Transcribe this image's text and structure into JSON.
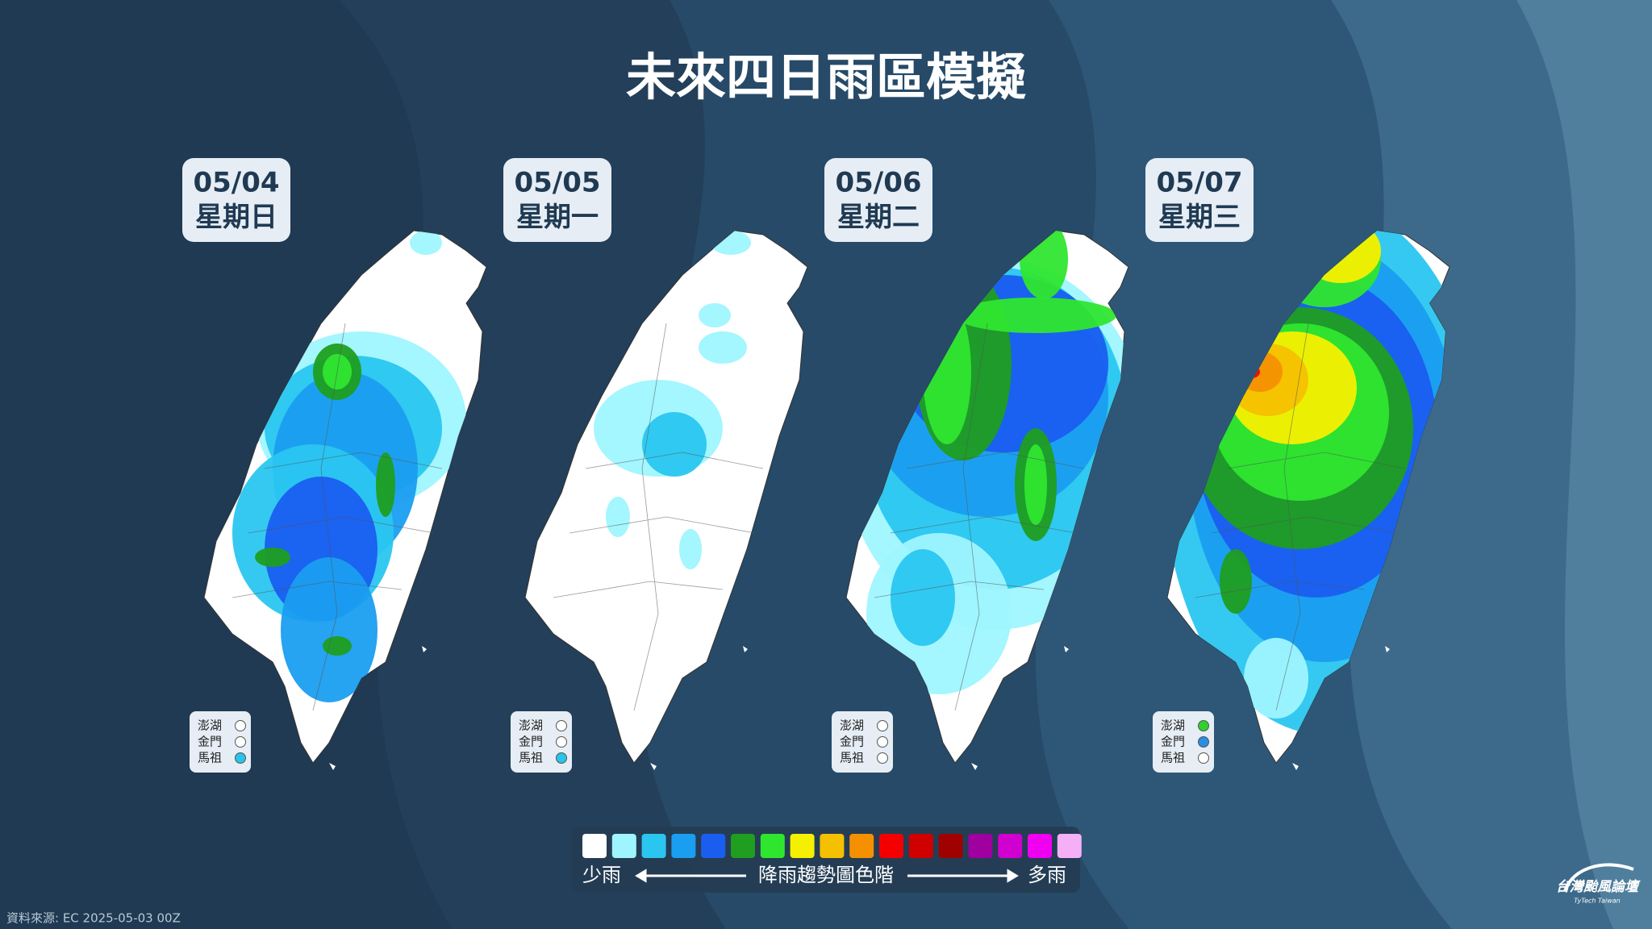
{
  "title": "未來四日雨區模擬",
  "panels": [
    {
      "date": "05/04",
      "weekday": "星期日",
      "islands": [
        {
          "name": "澎湖",
          "color": "#ffffff"
        },
        {
          "name": "金門",
          "color": "#ffffff"
        },
        {
          "name": "馬祖",
          "color": "#29c4e8"
        }
      ]
    },
    {
      "date": "05/05",
      "weekday": "星期一",
      "islands": [
        {
          "name": "澎湖",
          "color": "#ffffff"
        },
        {
          "name": "金門",
          "color": "#ffffff"
        },
        {
          "name": "馬祖",
          "color": "#29c4e8"
        }
      ]
    },
    {
      "date": "05/06",
      "weekday": "星期二",
      "islands": [
        {
          "name": "澎湖",
          "color": "#ffffff"
        },
        {
          "name": "金門",
          "color": "#ffffff"
        },
        {
          "name": "馬祖",
          "color": "#ffffff"
        }
      ]
    },
    {
      "date": "05/07",
      "weekday": "星期三",
      "islands": [
        {
          "name": "澎湖",
          "color": "#2fd12f"
        },
        {
          "name": "金門",
          "color": "#2a8fe0"
        },
        {
          "name": "馬祖",
          "color": "#ffffff"
        }
      ]
    }
  ],
  "color_scale": {
    "colors": [
      "#ffffff",
      "#9ff5ff",
      "#2ac6f0",
      "#1a9ef0",
      "#1a5ef0",
      "#1f9e1f",
      "#2fe62f",
      "#f5f000",
      "#f5c000",
      "#f59000",
      "#f50000",
      "#d00000",
      "#a00000",
      "#a000a0",
      "#d000d0",
      "#f000f0",
      "#f5b0f5"
    ],
    "low": "少雨",
    "label": "降雨趨勢圖色階",
    "high": "多雨"
  },
  "source": "資料來源: EC 2025-05-03 00Z",
  "logo": {
    "name": "台灣颱風論壇",
    "subtitle": "TyTech Taiwan"
  }
}
